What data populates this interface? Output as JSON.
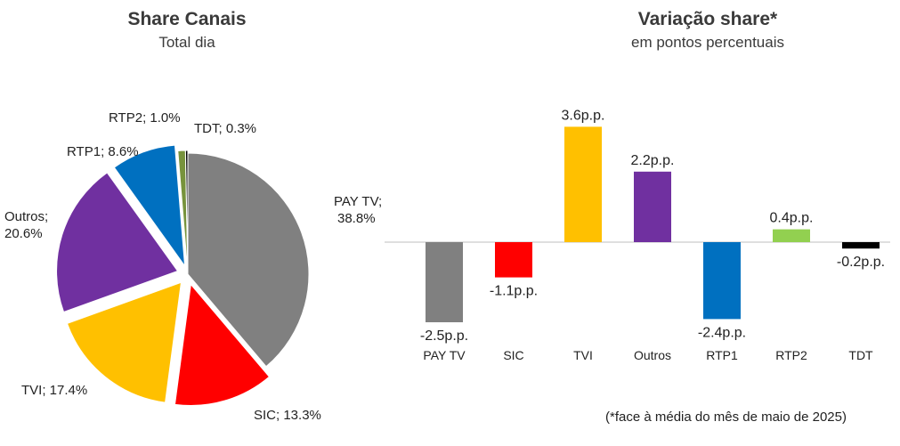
{
  "chart_data": [
    {
      "type": "pie",
      "title": "Share Canais",
      "subtitle": "Total dia",
      "slices": [
        {
          "name": "PAY TV",
          "value": 38.8,
          "label": "PAY TV;",
          "value_label": "38.8%",
          "color": "#808080"
        },
        {
          "name": "SIC",
          "value": 13.3,
          "label": "SIC; 13.3%",
          "color": "#ff0000"
        },
        {
          "name": "TVI",
          "value": 17.4,
          "label": "TVI; 17.4%",
          "color": "#ffc000"
        },
        {
          "name": "Outros",
          "value": 20.6,
          "label": "Outros;",
          "value_label": "20.6%",
          "color": "#7030a0"
        },
        {
          "name": "RTP1",
          "value": 8.6,
          "label": "RTP1; 8.6%",
          "color": "#0070c0"
        },
        {
          "name": "RTP2",
          "value": 1.0,
          "label": "RTP2; 1.0%",
          "color": "#77933c"
        },
        {
          "name": "TDT",
          "value": 0.3,
          "label": "TDT; 0.3%",
          "color": "#000000"
        }
      ]
    },
    {
      "type": "bar",
      "title": "Variação share*",
      "subtitle": "em pontos percentuais",
      "categories": [
        "PAY TV",
        "SIC",
        "TVI",
        "Outros",
        "RTP1",
        "RTP2",
        "TDT"
      ],
      "values": [
        -2.5,
        -1.1,
        3.6,
        2.2,
        -2.4,
        0.4,
        -0.2
      ],
      "value_labels": [
        "-2.5p.p.",
        "-1.1p.p.",
        "3.6p.p.",
        "2.2p.p.",
        "-2.4p.p.",
        "0.4p.p.",
        "-0.2p.p."
      ],
      "colors": [
        "#808080",
        "#ff0000",
        "#ffc000",
        "#7030a0",
        "#0070c0",
        "#92d050",
        "#000000"
      ],
      "ylim": [
        -2.5,
        3.6
      ],
      "footnote": "(*face à média do mês de maio de 2025)"
    }
  ]
}
